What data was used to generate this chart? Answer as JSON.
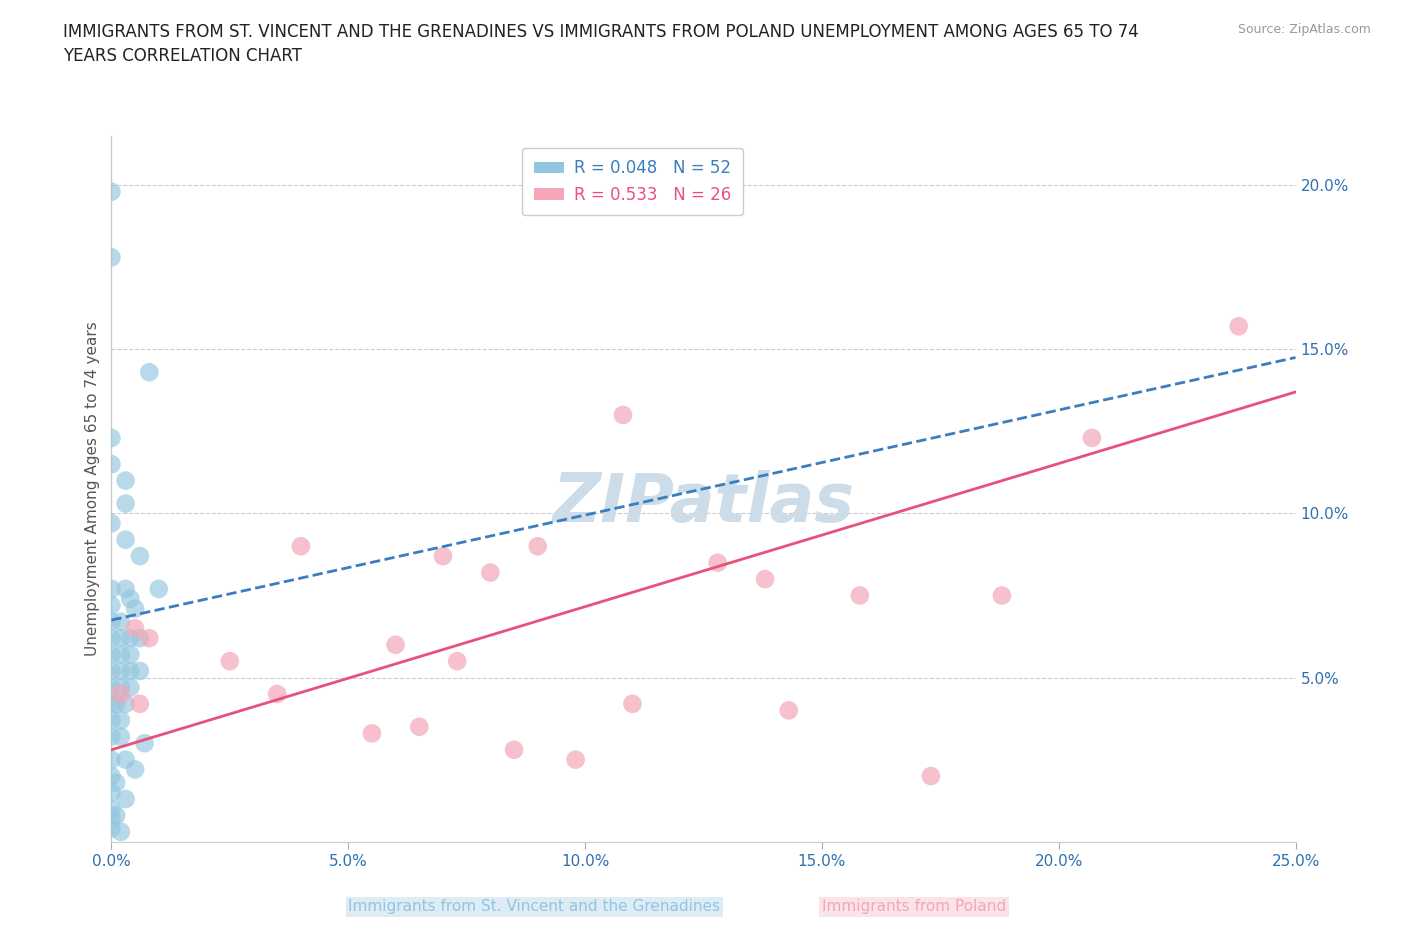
{
  "title": "IMMIGRANTS FROM ST. VINCENT AND THE GRENADINES VS IMMIGRANTS FROM POLAND UNEMPLOYMENT AMONG AGES 65 TO 74\nYEARS CORRELATION CHART",
  "source": "Source: ZipAtlas.com",
  "ylabel": "Unemployment Among Ages 65 to 74 years",
  "xlim": [
    0.0,
    0.25
  ],
  "ylim": [
    0.0,
    0.215
  ],
  "xticks": [
    0.0,
    0.05,
    0.1,
    0.15,
    0.2,
    0.25
  ],
  "ytick_values": [
    0.0,
    0.05,
    0.1,
    0.15,
    0.2
  ],
  "xtick_labels": [
    "0.0%",
    "5.0%",
    "10.0%",
    "15.0%",
    "20.0%",
    "25.0%"
  ],
  "ytick_labels": [
    "",
    "5.0%",
    "10.0%",
    "15.0%",
    "20.0%"
  ],
  "legend1_r": "0.048",
  "legend1_n": "52",
  "legend2_r": "0.533",
  "legend2_n": "26",
  "legend1_label": "Immigrants from St. Vincent and the Grenadines",
  "legend2_label": "Immigrants from Poland",
  "blue_color": "#92c5de",
  "pink_color": "#f4a6b8",
  "blue_line_color": "#3a7ebf",
  "pink_line_color": "#e8527a",
  "dashed_line_color": "#7ab0d4",
  "blue_dots": [
    [
      0.0,
      0.198
    ],
    [
      0.0,
      0.178
    ],
    [
      0.008,
      0.143
    ],
    [
      0.0,
      0.123
    ],
    [
      0.0,
      0.115
    ],
    [
      0.003,
      0.11
    ],
    [
      0.003,
      0.103
    ],
    [
      0.0,
      0.097
    ],
    [
      0.003,
      0.092
    ],
    [
      0.006,
      0.087
    ],
    [
      0.0,
      0.077
    ],
    [
      0.003,
      0.077
    ],
    [
      0.01,
      0.077
    ],
    [
      0.0,
      0.072
    ],
    [
      0.0,
      0.067
    ],
    [
      0.002,
      0.067
    ],
    [
      0.0,
      0.062
    ],
    [
      0.002,
      0.062
    ],
    [
      0.004,
      0.062
    ],
    [
      0.006,
      0.062
    ],
    [
      0.0,
      0.057
    ],
    [
      0.002,
      0.057
    ],
    [
      0.004,
      0.057
    ],
    [
      0.0,
      0.052
    ],
    [
      0.002,
      0.052
    ],
    [
      0.004,
      0.052
    ],
    [
      0.006,
      0.052
    ],
    [
      0.0,
      0.047
    ],
    [
      0.002,
      0.047
    ],
    [
      0.004,
      0.047
    ],
    [
      0.0,
      0.042
    ],
    [
      0.001,
      0.042
    ],
    [
      0.003,
      0.042
    ],
    [
      0.0,
      0.037
    ],
    [
      0.002,
      0.037
    ],
    [
      0.0,
      0.032
    ],
    [
      0.002,
      0.032
    ],
    [
      0.007,
      0.03
    ],
    [
      0.0,
      0.025
    ],
    [
      0.003,
      0.025
    ],
    [
      0.0,
      0.015
    ],
    [
      0.004,
      0.074
    ],
    [
      0.005,
      0.071
    ],
    [
      0.0,
      0.004
    ],
    [
      0.0,
      0.007
    ],
    [
      0.002,
      0.003
    ],
    [
      0.0,
      0.01
    ],
    [
      0.001,
      0.008
    ],
    [
      0.0,
      0.02
    ],
    [
      0.001,
      0.018
    ],
    [
      0.003,
      0.013
    ],
    [
      0.005,
      0.022
    ]
  ],
  "pink_dots": [
    [
      0.238,
      0.157
    ],
    [
      0.207,
      0.123
    ],
    [
      0.108,
      0.13
    ],
    [
      0.128,
      0.085
    ],
    [
      0.138,
      0.08
    ],
    [
      0.09,
      0.09
    ],
    [
      0.07,
      0.087
    ],
    [
      0.08,
      0.082
    ],
    [
      0.158,
      0.075
    ],
    [
      0.188,
      0.075
    ],
    [
      0.06,
      0.06
    ],
    [
      0.073,
      0.055
    ],
    [
      0.04,
      0.09
    ],
    [
      0.025,
      0.055
    ],
    [
      0.035,
      0.045
    ],
    [
      0.11,
      0.042
    ],
    [
      0.143,
      0.04
    ],
    [
      0.055,
      0.033
    ],
    [
      0.065,
      0.035
    ],
    [
      0.085,
      0.028
    ],
    [
      0.098,
      0.025
    ],
    [
      0.173,
      0.02
    ],
    [
      0.005,
      0.065
    ],
    [
      0.008,
      0.062
    ],
    [
      0.002,
      0.045
    ],
    [
      0.006,
      0.042
    ]
  ],
  "blue_trendline": [
    [
      0.0,
      0.0675
    ],
    [
      0.25,
      0.1475
    ]
  ],
  "pink_trendline": [
    [
      0.0,
      0.028
    ],
    [
      0.25,
      0.137
    ]
  ],
  "watermark": "ZIPatlas",
  "watermark_color": "#ccdce8",
  "watermark_fontsize": 48,
  "bg_color": "#ffffff",
  "grid_color": "#cccccc"
}
